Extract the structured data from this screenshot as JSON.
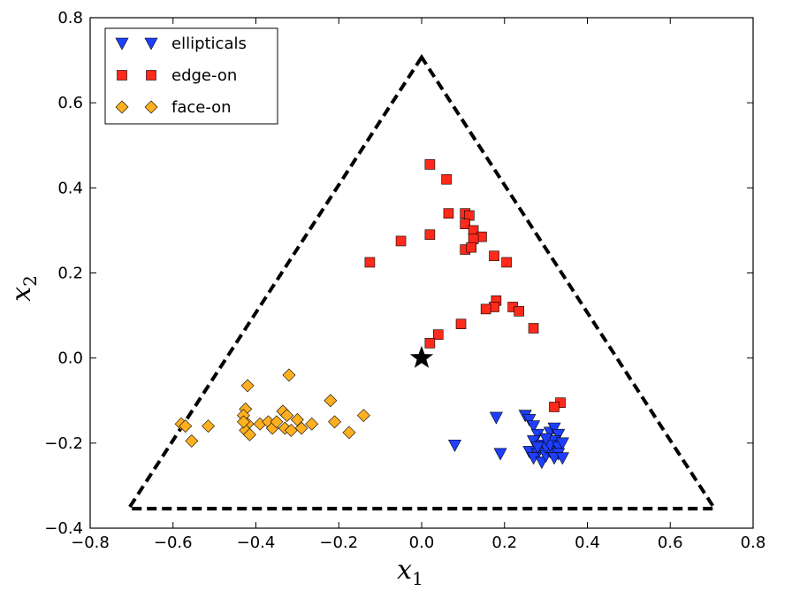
{
  "chart_data": {
    "type": "scatter",
    "xlabel": "x",
    "xlabel_sub": "1",
    "ylabel": "x",
    "ylabel_sub": "2",
    "xlim": [
      -0.8,
      0.8
    ],
    "ylim": [
      -0.4,
      0.8
    ],
    "xticks": [
      -0.8,
      -0.6,
      -0.4,
      -0.2,
      0.0,
      0.2,
      0.4,
      0.6,
      0.8
    ],
    "yticks": [
      -0.4,
      -0.2,
      0.0,
      0.2,
      0.4,
      0.6,
      0.8
    ],
    "xtick_labels": [
      "−0.8",
      "−0.6",
      "−0.4",
      "−0.2",
      "0.0",
      "0.2",
      "0.4",
      "0.6",
      "0.8"
    ],
    "ytick_labels": [
      "−0.4",
      "−0.2",
      "0.0",
      "0.2",
      "0.4",
      "0.6",
      "0.8"
    ],
    "grid": false,
    "legend_position": "top-left",
    "triangle": {
      "style": "dashed",
      "color": "#000000",
      "vertices": [
        [
          0.0,
          0.707
        ],
        [
          -0.707,
          -0.354
        ],
        [
          0.707,
          -0.354
        ]
      ]
    },
    "center_marker": {
      "shape": "star",
      "color": "#000000",
      "x": 0.0,
      "y": 0.0
    },
    "series": [
      {
        "name": "ellipticals",
        "marker": "triangle-down",
        "color": "#1f3fff",
        "points": [
          [
            0.08,
            -0.205
          ],
          [
            0.18,
            -0.14
          ],
          [
            0.19,
            -0.225
          ],
          [
            0.25,
            -0.135
          ],
          [
            0.26,
            -0.145
          ],
          [
            0.27,
            -0.16
          ],
          [
            0.28,
            -0.18
          ],
          [
            0.27,
            -0.195
          ],
          [
            0.29,
            -0.205
          ],
          [
            0.26,
            -0.22
          ],
          [
            0.28,
            -0.225
          ],
          [
            0.27,
            -0.235
          ],
          [
            0.29,
            -0.245
          ],
          [
            0.3,
            -0.23
          ],
          [
            0.31,
            -0.22
          ],
          [
            0.3,
            -0.21
          ],
          [
            0.31,
            -0.175
          ],
          [
            0.32,
            -0.165
          ],
          [
            0.33,
            -0.18
          ],
          [
            0.32,
            -0.195
          ],
          [
            0.31,
            -0.205
          ],
          [
            0.33,
            -0.21
          ],
          [
            0.34,
            -0.2
          ],
          [
            0.33,
            -0.225
          ],
          [
            0.32,
            -0.235
          ],
          [
            0.34,
            -0.235
          ],
          [
            0.3,
            -0.19
          ],
          [
            0.28,
            -0.21
          ]
        ]
      },
      {
        "name": "edge-on",
        "marker": "square",
        "color": "#ff2a1a",
        "points": [
          [
            0.02,
            0.455
          ],
          [
            0.06,
            0.42
          ],
          [
            0.065,
            0.34
          ],
          [
            0.105,
            0.34
          ],
          [
            0.115,
            0.335
          ],
          [
            0.105,
            0.315
          ],
          [
            0.125,
            0.3
          ],
          [
            0.145,
            0.285
          ],
          [
            0.125,
            0.28
          ],
          [
            0.02,
            0.29
          ],
          [
            -0.05,
            0.275
          ],
          [
            0.105,
            0.255
          ],
          [
            0.12,
            0.26
          ],
          [
            0.175,
            0.24
          ],
          [
            0.205,
            0.225
          ],
          [
            -0.125,
            0.225
          ],
          [
            0.18,
            0.135
          ],
          [
            0.175,
            0.12
          ],
          [
            0.155,
            0.115
          ],
          [
            0.22,
            0.12
          ],
          [
            0.235,
            0.11
          ],
          [
            0.27,
            0.07
          ],
          [
            0.095,
            0.08
          ],
          [
            0.04,
            0.055
          ],
          [
            0.02,
            0.035
          ],
          [
            0.335,
            -0.105
          ],
          [
            0.32,
            -0.115
          ]
        ]
      },
      {
        "name": "face-on",
        "marker": "diamond",
        "color": "#ffb020",
        "points": [
          [
            -0.58,
            -0.155
          ],
          [
            -0.57,
            -0.16
          ],
          [
            -0.555,
            -0.195
          ],
          [
            -0.515,
            -0.16
          ],
          [
            -0.42,
            -0.065
          ],
          [
            -0.425,
            -0.12
          ],
          [
            -0.43,
            -0.135
          ],
          [
            -0.42,
            -0.155
          ],
          [
            -0.425,
            -0.17
          ],
          [
            -0.415,
            -0.18
          ],
          [
            -0.43,
            -0.15
          ],
          [
            -0.39,
            -0.155
          ],
          [
            -0.37,
            -0.15
          ],
          [
            -0.36,
            -0.165
          ],
          [
            -0.35,
            -0.15
          ],
          [
            -0.335,
            -0.125
          ],
          [
            -0.325,
            -0.135
          ],
          [
            -0.33,
            -0.165
          ],
          [
            -0.315,
            -0.17
          ],
          [
            -0.32,
            -0.04
          ],
          [
            -0.3,
            -0.145
          ],
          [
            -0.29,
            -0.165
          ],
          [
            -0.265,
            -0.155
          ],
          [
            -0.22,
            -0.1
          ],
          [
            -0.21,
            -0.15
          ],
          [
            -0.175,
            -0.175
          ],
          [
            -0.14,
            -0.135
          ]
        ]
      }
    ]
  }
}
